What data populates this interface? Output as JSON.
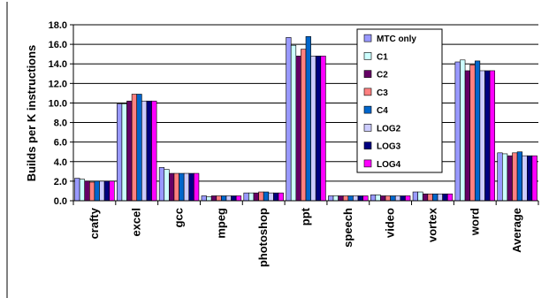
{
  "chart_data": {
    "type": "bar",
    "title": "",
    "xlabel": "",
    "ylabel": "Builds per K instructions",
    "ylim": [
      0,
      18
    ],
    "yticks": [
      "0.0",
      "2.0",
      "4.0",
      "6.0",
      "8.0",
      "10.0",
      "12.0",
      "14.0",
      "16.0",
      "18.0"
    ],
    "grid": true,
    "legend_position": "top-right",
    "categories": [
      "crafty",
      "excel",
      "gcc",
      "mpeg",
      "photoshop",
      "ppt",
      "speech",
      "video",
      "vortex",
      "word",
      "Average"
    ],
    "series": [
      {
        "name": "MTC only",
        "color": "#9999ff",
        "values": [
          2.3,
          9.9,
          3.4,
          0.5,
          0.8,
          16.7,
          0.5,
          0.6,
          0.9,
          14.2,
          4.9
        ]
      },
      {
        "name": "C1",
        "color": "#ccffff",
        "values": [
          2.2,
          9.9,
          3.2,
          0.4,
          0.8,
          15.9,
          0.5,
          0.6,
          0.9,
          14.4,
          4.8
        ]
      },
      {
        "name": "C2",
        "color": "#660066",
        "values": [
          2.0,
          10.2,
          2.8,
          0.5,
          0.8,
          14.8,
          0.5,
          0.5,
          0.7,
          13.3,
          4.6
        ]
      },
      {
        "name": "C3",
        "color": "#ff8080",
        "values": [
          1.9,
          10.9,
          2.8,
          0.5,
          0.9,
          15.5,
          0.5,
          0.5,
          0.7,
          13.9,
          4.9
        ]
      },
      {
        "name": "C4",
        "color": "#0066cc",
        "values": [
          2.0,
          10.9,
          2.8,
          0.5,
          0.9,
          16.8,
          0.5,
          0.5,
          0.7,
          14.3,
          5.0
        ]
      },
      {
        "name": "LOG2",
        "color": "#ccccff",
        "values": [
          2.0,
          10.2,
          2.8,
          0.5,
          0.8,
          14.8,
          0.5,
          0.5,
          0.7,
          13.3,
          4.6
        ]
      },
      {
        "name": "LOG3",
        "color": "#000080",
        "values": [
          2.0,
          10.2,
          2.8,
          0.5,
          0.8,
          14.8,
          0.5,
          0.5,
          0.7,
          13.3,
          4.6
        ]
      },
      {
        "name": "LOG4",
        "color": "#ff00ff",
        "values": [
          2.0,
          10.2,
          2.8,
          0.5,
          0.8,
          14.8,
          0.5,
          0.5,
          0.7,
          13.3,
          4.6
        ]
      }
    ]
  }
}
